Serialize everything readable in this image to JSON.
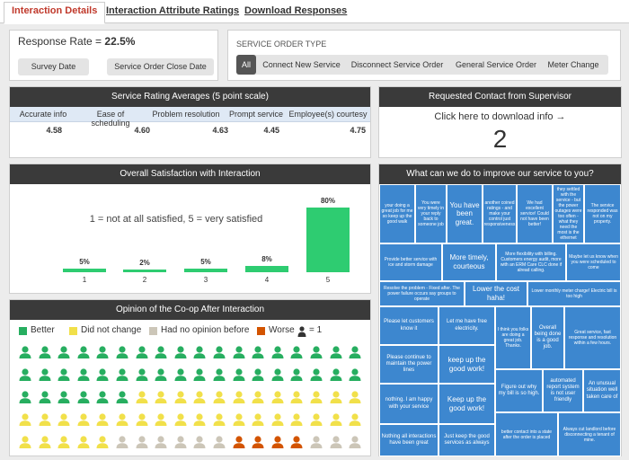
{
  "tabs": [
    "Interaction Details",
    "Interaction Attribute Ratings",
    "Download Responses"
  ],
  "response": {
    "label": "Response Rate = ",
    "value": "22.5%",
    "buttons": [
      "Survey Date",
      "Service Order Close Date"
    ]
  },
  "service_order": {
    "title": "SERVICE ORDER TYPE",
    "options": [
      "All",
      "Connect New Service",
      "Disconnect Service Order",
      "General Service Order",
      "Meter Change"
    ]
  },
  "ratings": {
    "title": "Service Rating Averages (5 point scale)",
    "headers": [
      "Accurate info",
      "Ease of scheduling",
      "Problem resolution",
      "Prompt service",
      "Employee(s) courtesy"
    ],
    "values": [
      "4.58",
      "4.60",
      "4.63",
      "4.45",
      "4.75"
    ]
  },
  "contact": {
    "title": "Requested Contact from Supervisor",
    "link": "Click here to download info →",
    "count": "2"
  },
  "satisfaction": {
    "title": "Overall Satisfaction with Interaction",
    "note": "1 = not at all satisfied, 5 = very satisfied"
  },
  "chart_data": {
    "type": "bar",
    "categories": [
      "1",
      "2",
      "3",
      "4",
      "5"
    ],
    "values": [
      5,
      2,
      5,
      8,
      80
    ],
    "value_labels": [
      "5%",
      "2%",
      "5%",
      "8%",
      "80%"
    ],
    "ylim": [
      0,
      80
    ],
    "color": "#2ecc71"
  },
  "opinion": {
    "title": "Opinion of the Co-op After Interaction",
    "legend": [
      {
        "label": "Better",
        "color": "#27ae60"
      },
      {
        "label": "Did not change",
        "color": "#f1e04a"
      },
      {
        "label": "Had no opinion before",
        "color": "#ccc6b8"
      },
      {
        "label": "Worse",
        "color": "#d35400"
      }
    ],
    "unit_label": "= 1"
  },
  "improve": {
    "title": "What can we do to improve our service to you?",
    "cells": [
      "your doing a great job for me so keep up the good walk",
      "You were very timely in your reply back to someone job",
      "You have been great.",
      "another coined ratings - and make your control just responsiveness",
      "We had excellent service! Could not have been better!",
      "they settled with the service - but the power outages were too often - what they need the most is the ethernet",
      "The service responded was not on my property.",
      "Provide better service with ice and storm damage",
      "More timely, courteous",
      "More flexibility with billing. Customers energy audit, more with an ERM Care CLC done if alread calling.",
      "Maybe let us know when you were scheduled to come",
      "Resolve the problem - Fixed after. The power failure occurs say groups to operate",
      "Lower the cost haha!",
      "Lower monthly meter charge! Electric bill is too high",
      "Please let customers know it",
      "Let me have free electricity.",
      "I think you folks are doing a great job. Thanks.",
      "Overall being done is a good job.",
      "Great service, fast response and resolution within a few hours.",
      "Please continue to maintain the power lines",
      "keep up the good work!",
      "nothing. I am happy with your service",
      "Keep up the good work!",
      "Figure out why my bill is so high.",
      "automated report system is not user friendly",
      "An unusual situation well taken care of",
      "Nothing all interactions have been great",
      "Just keep the good services as always",
      "better contact into a state after the order is placed",
      "Always cut landlord before disconnecting a tenant of mine."
    ]
  }
}
